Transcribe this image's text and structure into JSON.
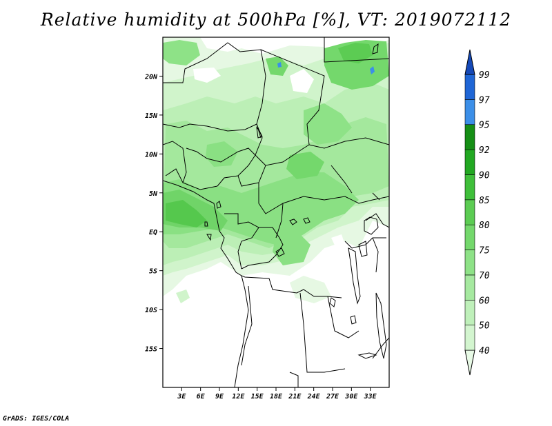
{
  "title": "Relative humidity at 500hPa [%], VT: 2019072112",
  "credit": "GrADS: IGES/COLA",
  "map": {
    "lon_range": [
      0,
      36
    ],
    "lat_range": [
      -20,
      25
    ],
    "lon_ticks": [
      "3E",
      "6E",
      "9E",
      "12E",
      "15E",
      "18E",
      "21E",
      "24E",
      "27E",
      "30E",
      "33E"
    ],
    "lon_tick_values": [
      3,
      6,
      9,
      12,
      15,
      18,
      21,
      24,
      27,
      30,
      33
    ],
    "lat_ticks": [
      "20N",
      "15N",
      "10N",
      "5N",
      "EQ",
      "5S",
      "10S",
      "15S"
    ],
    "lat_tick_values": [
      20,
      15,
      10,
      5,
      0,
      -5,
      -10,
      -15
    ]
  },
  "colorbar": {
    "levels": [
      "40",
      "50",
      "60",
      "70",
      "75",
      "80",
      "85",
      "90",
      "92",
      "95",
      "97",
      "99"
    ],
    "colors": [
      "#e8fae6",
      "#d3f5cf",
      "#bff0ba",
      "#a6e9a0",
      "#8ee287",
      "#74d86c",
      "#5ccc53",
      "#3fbf3a",
      "#22a822",
      "#158f15",
      "#3c8fe8",
      "#1f66d6",
      "#1549b8"
    ]
  }
}
